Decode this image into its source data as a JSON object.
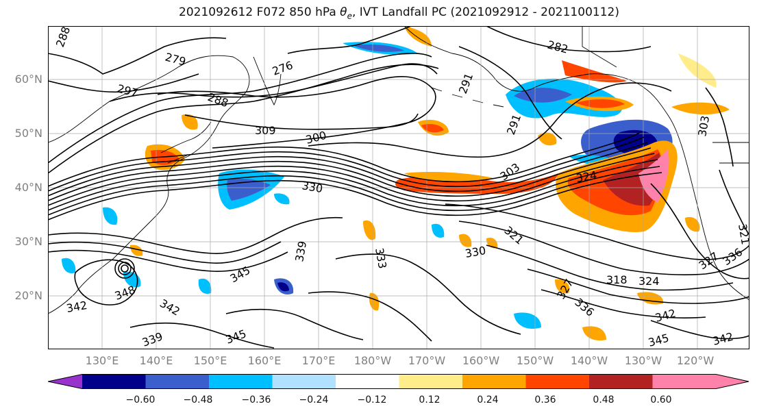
{
  "title": "2021092612 F072 850 hPa θe, IVT Landfall PC (2021092912 - 2021100112)",
  "title_parts": {
    "prefix": "2021092612 F072 850 hPa ",
    "theta": "θ",
    "sub": "e",
    "suffix": ", IVT Landfall PC (2021092912 - 2021100112)"
  },
  "lat_labels": [
    "60°N",
    "50°N",
    "40°N",
    "30°N",
    "20°N"
  ],
  "lon_labels": [
    "130°E",
    "140°E",
    "150°E",
    "160°E",
    "170°E",
    "180°W",
    "170°W",
    "160°W",
    "150°W",
    "140°W",
    "130°W",
    "120°W"
  ],
  "contour_labels": [
    "288",
    "279",
    "276",
    "297",
    "288",
    "282",
    "291",
    "309",
    "300",
    "291",
    "303",
    "330",
    "324",
    "303",
    "321",
    "330",
    "333",
    "339",
    "345",
    "342",
    "348",
    "342",
    "339",
    "345",
    "327",
    "336",
    "318",
    "324",
    "342",
    "345",
    "342",
    "321",
    "327",
    "336"
  ],
  "colorbar": {
    "ticks": [
      "−0.60",
      "−0.48",
      "−0.36",
      "−0.24",
      "−0.12",
      "0.12",
      "0.24",
      "0.36",
      "0.48",
      "0.60"
    ],
    "colors": [
      "#9932cc",
      "#00008b",
      "#3a5fcd",
      "#00bfff",
      "#b0e2ff",
      "#ffffff",
      "#ffec8b",
      "#ffa500",
      "#ff4500",
      "#b22222",
      "#ff82ab",
      "#ff82ab"
    ]
  },
  "colors": {
    "contour": "#000000",
    "grid": "#a9a9a9",
    "axis_label": "#808080"
  }
}
